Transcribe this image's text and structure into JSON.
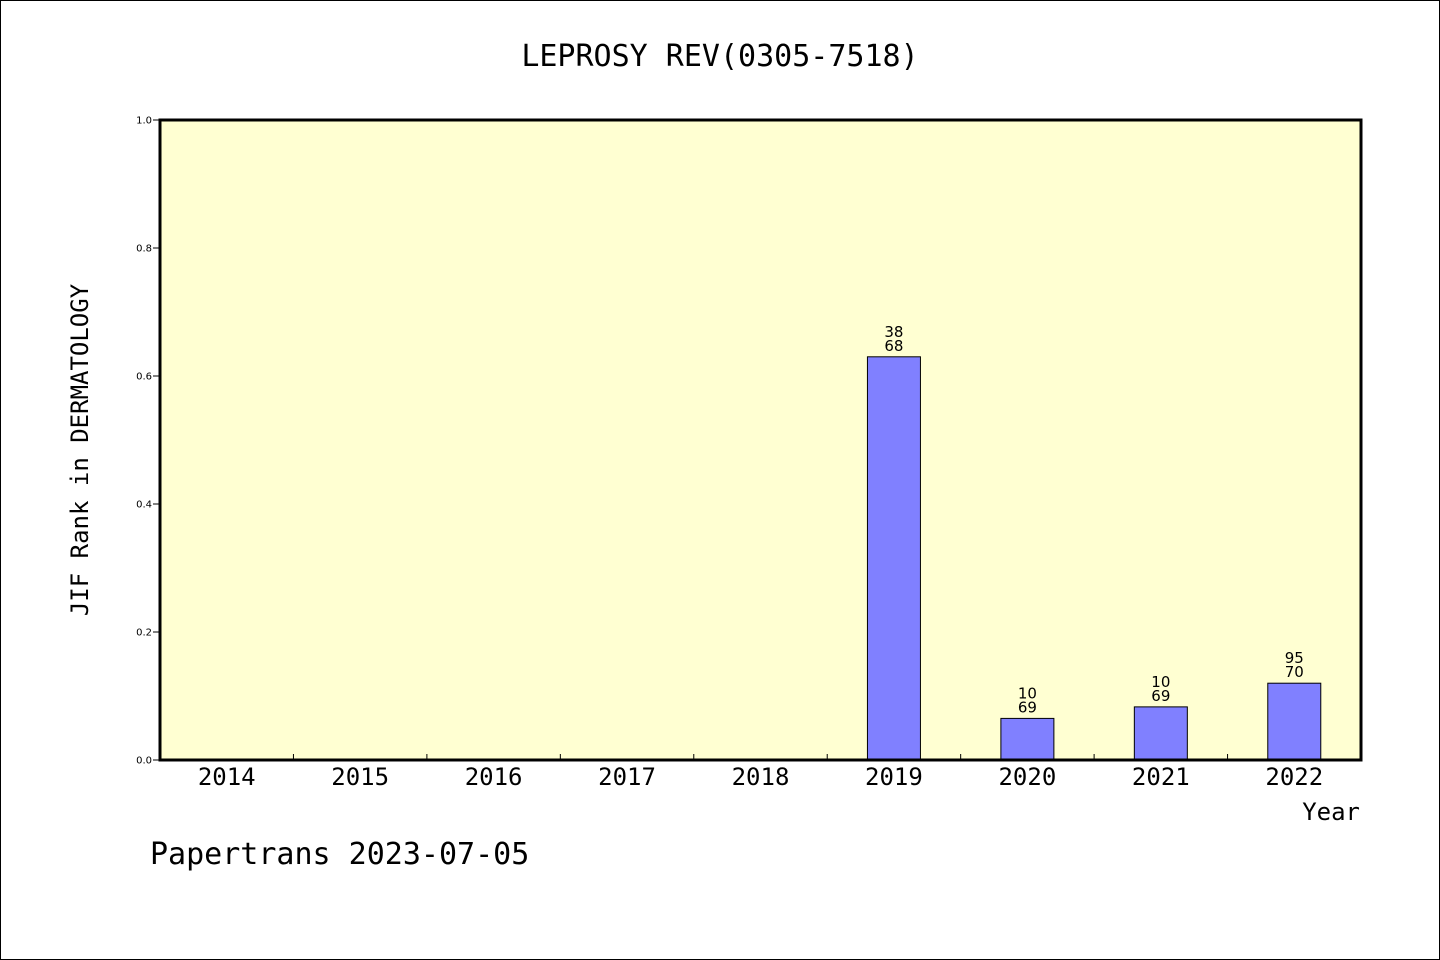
{
  "chart_data": {
    "type": "bar",
    "title": "LEPROSY REV(0305-7518)",
    "xlabel": "Year",
    "ylabel": "JIF Rank in DERMATOLOGY",
    "ylim": [
      0,
      1.0
    ],
    "yticks": [
      "0.0",
      "0.2",
      "0.4",
      "0.6",
      "0.8",
      "1.0"
    ],
    "categories": [
      "2014",
      "2015",
      "2016",
      "2017",
      "2018",
      "2019",
      "2020",
      "2021",
      "2022"
    ],
    "values": [
      null,
      null,
      null,
      null,
      null,
      0.63,
      0.065,
      0.083,
      0.12
    ],
    "bar_labels": [
      null,
      null,
      null,
      null,
      null,
      {
        "top": "38",
        "bottom": "68"
      },
      {
        "top": "10",
        "bottom": "69"
      },
      {
        "top": "10",
        "bottom": "69"
      },
      {
        "top": "95",
        "bottom": "70"
      }
    ],
    "grid": false,
    "colors": {
      "plot_background": "#FFFFD2",
      "bar_fill": "#8080FF",
      "bar_stroke": "#000000"
    }
  },
  "footer": {
    "text": "Papertrans 2023-07-05"
  }
}
